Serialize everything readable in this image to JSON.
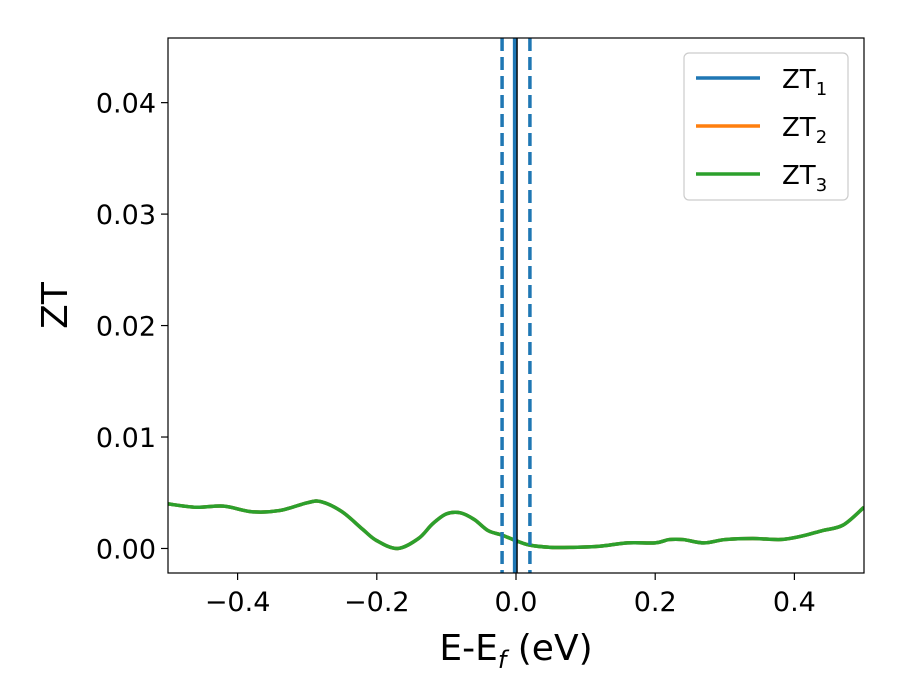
{
  "chart_data": {
    "type": "line",
    "xlabel_main": "E-E",
    "xlabel_sub": "f",
    "xlabel_unit": " (eV)",
    "ylabel": "ZT",
    "xlim": [
      -0.5,
      0.5
    ],
    "ylim": [
      -0.0022,
      0.0458
    ],
    "grid": false,
    "legend_position": "top-right",
    "x_ticks": [
      {
        "value": -0.4,
        "label": "−0.4"
      },
      {
        "value": -0.2,
        "label": "−0.2"
      },
      {
        "value": 0.0,
        "label": "0.0"
      },
      {
        "value": 0.2,
        "label": "0.2"
      },
      {
        "value": 0.4,
        "label": "0.4"
      }
    ],
    "y_ticks": [
      {
        "value": 0.0,
        "label": "0.00"
      },
      {
        "value": 0.01,
        "label": "0.01"
      },
      {
        "value": 0.02,
        "label": "0.02"
      },
      {
        "value": 0.03,
        "label": "0.03"
      },
      {
        "value": 0.04,
        "label": "0.04"
      }
    ],
    "vlines": [
      {
        "x": -0.02,
        "color": "#1f77b4",
        "style": "dashed"
      },
      {
        "x": 0.0,
        "color": "#000000",
        "style": "solid"
      },
      {
        "x": 0.02,
        "color": "#1f77b4",
        "style": "dashed"
      },
      {
        "x": -0.002,
        "color": "#1f77b4",
        "style": "solid"
      }
    ],
    "series": [
      {
        "name_main": "ZT",
        "name_sub": "1",
        "color": "#1f77b4",
        "x": [
          -0.5,
          -0.46,
          -0.42,
          -0.38,
          -0.34,
          -0.3,
          -0.28,
          -0.25,
          -0.22,
          -0.2,
          -0.17,
          -0.14,
          -0.12,
          -0.1,
          -0.08,
          -0.06,
          -0.04,
          -0.02,
          0.0,
          0.02,
          0.05,
          0.08,
          0.12,
          0.16,
          0.2,
          0.22,
          0.24,
          0.27,
          0.3,
          0.34,
          0.38,
          0.41,
          0.44,
          0.47,
          0.5
        ],
        "y": [
          0.004,
          0.0037,
          0.0038,
          0.0033,
          0.0034,
          0.0041,
          0.0042,
          0.0033,
          0.0017,
          0.0007,
          0.0,
          0.0009,
          0.0022,
          0.0031,
          0.0032,
          0.0026,
          0.0016,
          0.0012,
          0.0007,
          0.0003,
          0.0001,
          0.0001,
          0.0002,
          0.0005,
          0.0005,
          0.0008,
          0.0008,
          0.0005,
          0.0008,
          0.0009,
          0.0008,
          0.0011,
          0.0016,
          0.0021,
          0.0037
        ]
      },
      {
        "name_main": "ZT",
        "name_sub": "2",
        "color": "#ff7f0e",
        "x": [
          -0.5,
          -0.46,
          -0.42,
          -0.38,
          -0.34,
          -0.3,
          -0.28,
          -0.25,
          -0.22,
          -0.2,
          -0.17,
          -0.14,
          -0.12,
          -0.1,
          -0.08,
          -0.06,
          -0.04,
          -0.02,
          0.0,
          0.02,
          0.05,
          0.08,
          0.12,
          0.16,
          0.2,
          0.22,
          0.24,
          0.27,
          0.3,
          0.34,
          0.38,
          0.41,
          0.44,
          0.47,
          0.5
        ],
        "y": [
          0.004,
          0.0037,
          0.0038,
          0.0033,
          0.0034,
          0.0041,
          0.0042,
          0.0033,
          0.0017,
          0.0007,
          0.0,
          0.0009,
          0.0022,
          0.0031,
          0.0032,
          0.0026,
          0.0016,
          0.0012,
          0.0007,
          0.0003,
          0.0001,
          0.0001,
          0.0002,
          0.0005,
          0.0005,
          0.0008,
          0.0008,
          0.0005,
          0.0008,
          0.0009,
          0.0008,
          0.0011,
          0.0016,
          0.0021,
          0.0037
        ]
      },
      {
        "name_main": "ZT",
        "name_sub": "3",
        "color": "#2ca02c",
        "x": [
          -0.5,
          -0.46,
          -0.42,
          -0.38,
          -0.34,
          -0.3,
          -0.28,
          -0.25,
          -0.22,
          -0.2,
          -0.17,
          -0.14,
          -0.12,
          -0.1,
          -0.08,
          -0.06,
          -0.04,
          -0.02,
          0.0,
          0.02,
          0.05,
          0.08,
          0.12,
          0.16,
          0.2,
          0.22,
          0.24,
          0.27,
          0.3,
          0.34,
          0.38,
          0.41,
          0.44,
          0.47,
          0.5
        ],
        "y": [
          0.004,
          0.0037,
          0.0038,
          0.0033,
          0.0034,
          0.0041,
          0.0042,
          0.0033,
          0.0017,
          0.0007,
          0.0,
          0.0009,
          0.0022,
          0.0031,
          0.0032,
          0.0026,
          0.0016,
          0.0012,
          0.0007,
          0.0003,
          0.0001,
          0.0001,
          0.0002,
          0.0005,
          0.0005,
          0.0008,
          0.0008,
          0.0005,
          0.0008,
          0.0009,
          0.0008,
          0.0011,
          0.0016,
          0.0021,
          0.0037
        ]
      }
    ]
  }
}
